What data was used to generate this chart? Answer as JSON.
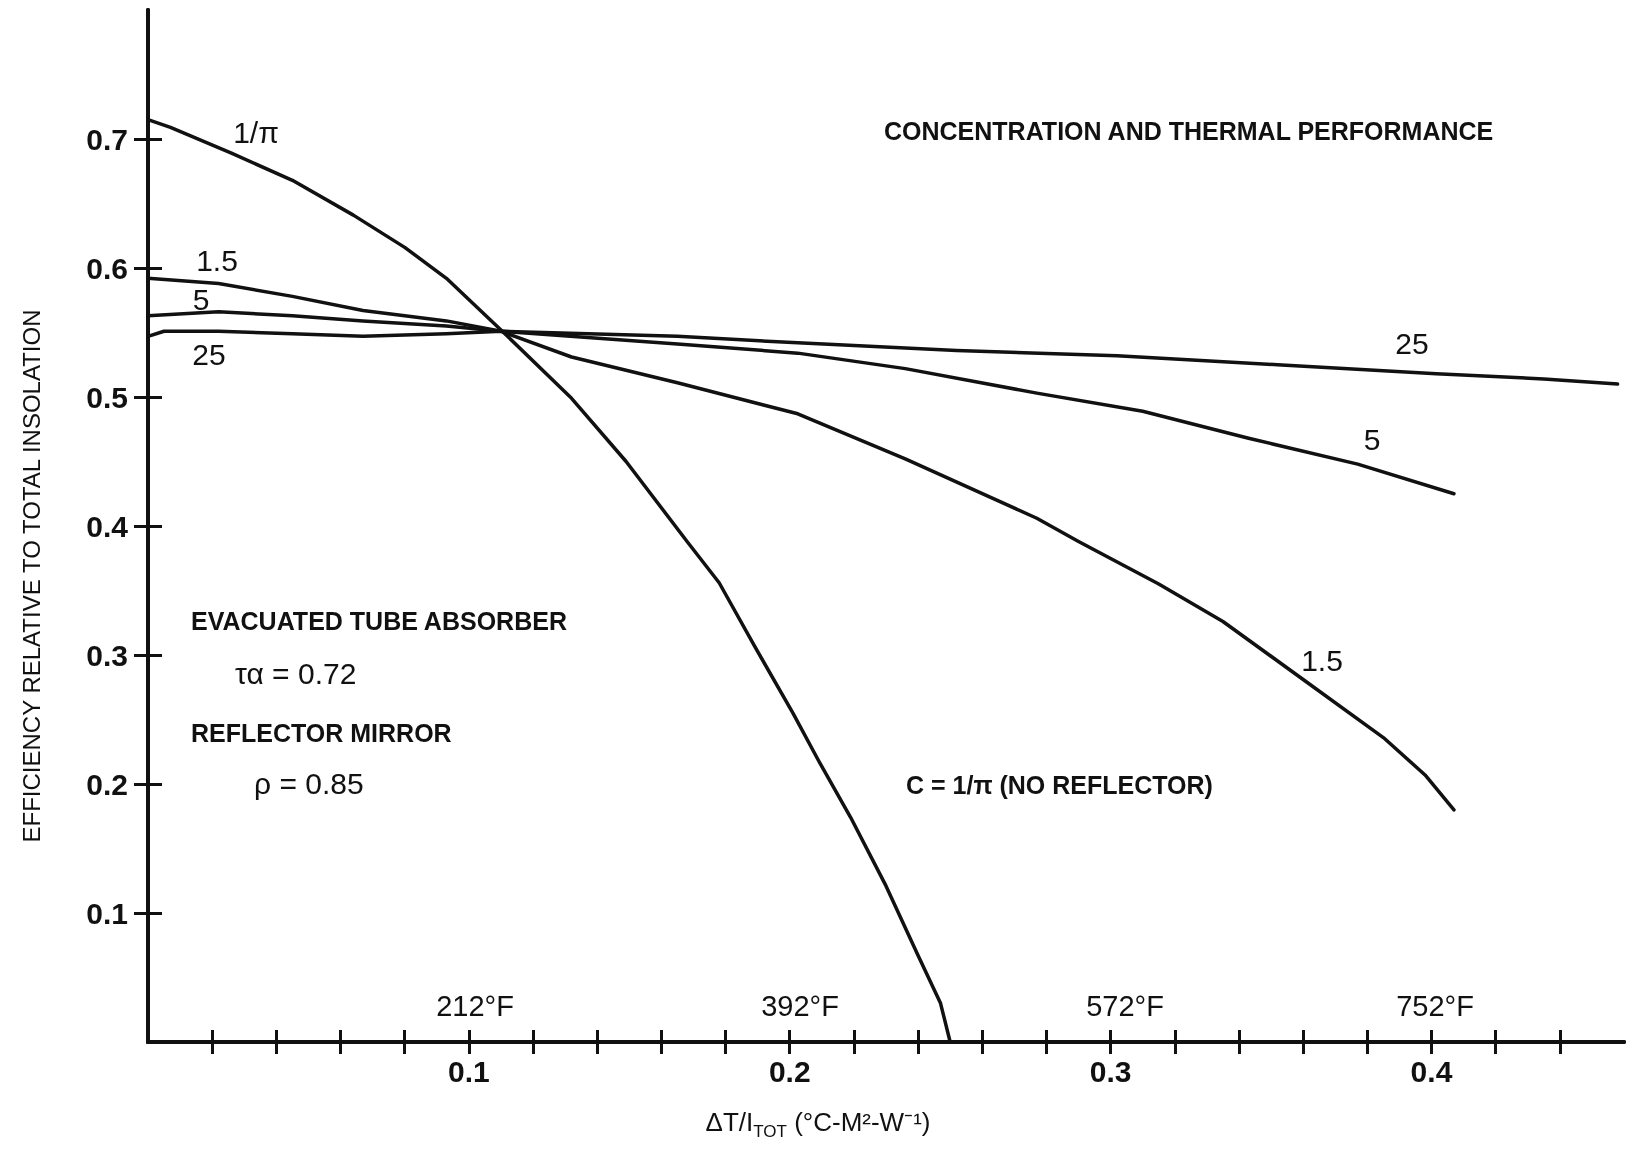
{
  "chart_data": {
    "type": "line",
    "title": "CONCENTRATION AND THERMAL PERFORMANCE",
    "xlabel": "ΔT/I$_{TOT}$ (°C-M²-W⁻¹)",
    "ylabel": "EFFICIENCY RELATIVE TO TOTAL INSOLATION",
    "annotations": [
      "EVACUATED TUBE ABSORBER",
      "τα = 0.72",
      "REFLECTOR MIRROR",
      "ρ = 0.85",
      "C = 1/π (NO REFLECTOR)",
      "212°F",
      "392°F",
      "572°F",
      "752°F",
      "25",
      "5",
      "1.5"
    ],
    "series": [
      {
        "name": "1/π",
        "color": "#111111",
        "x": [
          0,
          0.007,
          0.026,
          0.045,
          0.064,
          0.08,
          0.093,
          0.11,
          0.132,
          0.149,
          0.168,
          0.178,
          0.189,
          0.201,
          0.209,
          0.219,
          0.23,
          0.24,
          0.247,
          0.25
        ],
        "values": [
          0.715,
          0.709,
          0.689,
          0.668,
          0.641,
          0.616,
          0.592,
          0.552,
          0.499,
          0.45,
          0.388,
          0.356,
          0.307,
          0.255,
          0.218,
          0.174,
          0.121,
          0.067,
          0.03,
          0
        ]
      },
      {
        "name": "1.5",
        "color": "#111111",
        "x": [
          0,
          0.022,
          0.045,
          0.067,
          0.093,
          0.11,
          0.132,
          0.165,
          0.2025,
          0.236,
          0.277,
          0.29,
          0.315,
          0.335,
          0.36,
          0.385,
          0.398,
          0.407
        ],
        "values": [
          0.592,
          0.588,
          0.578,
          0.567,
          0.559,
          0.551,
          0.531,
          0.511,
          0.487,
          0.452,
          0.406,
          0.388,
          0.355,
          0.326,
          0.281,
          0.236,
          0.207,
          0.18
        ]
      },
      {
        "name": "5",
        "color": "#111111",
        "x": [
          0,
          0.022,
          0.045,
          0.067,
          0.093,
          0.11,
          0.165,
          0.2025,
          0.236,
          0.277,
          0.31,
          0.343,
          0.377,
          0.407
        ],
        "values": [
          0.563,
          0.566,
          0.563,
          0.559,
          0.555,
          0.551,
          0.541,
          0.534,
          0.522,
          0.503,
          0.489,
          0.468,
          0.448,
          0.425
        ]
      },
      {
        "name": "25",
        "color": "#111111",
        "x": [
          0,
          0.005,
          0.022,
          0.045,
          0.067,
          0.093,
          0.11,
          0.165,
          0.2025,
          0.252,
          0.302,
          0.352,
          0.4015,
          0.435,
          0.458
        ],
        "values": [
          0.547,
          0.551,
          0.551,
          0.549,
          0.547,
          0.549,
          0.551,
          0.547,
          0.542,
          0.536,
          0.532,
          0.525,
          0.518,
          0.514,
          0.51
        ]
      }
    ],
    "xlim": [
      0,
      0.46
    ],
    "ylim": [
      0,
      0.8
    ],
    "xticks": [
      {
        "value": 0.02,
        "label": null
      },
      {
        "value": 0.04,
        "label": null
      },
      {
        "value": 0.06,
        "label": null
      },
      {
        "value": 0.08,
        "label": null
      },
      0.1,
      {
        "value": 0.12,
        "label": null
      },
      {
        "value": 0.14,
        "label": null
      },
      {
        "value": 0.16,
        "label": null
      },
      {
        "value": 0.18,
        "label": null
      },
      0.2,
      {
        "value": 0.22,
        "label": null
      },
      {
        "value": 0.24,
        "label": null
      },
      {
        "value": 0.26,
        "label": null
      },
      {
        "value": 0.28,
        "label": null
      },
      0.3,
      {
        "value": 0.32,
        "label": null
      },
      {
        "value": 0.34,
        "label": null
      },
      {
        "value": 0.36,
        "label": null
      },
      {
        "value": 0.38,
        "label": null
      },
      0.4,
      {
        "value": 0.42,
        "label": null
      },
      {
        "value": 0.44,
        "label": null
      }
    ],
    "yticks": [
      0.1,
      0.2,
      0.3,
      0.4,
      0.5,
      0.6,
      0.7
    ],
    "grid": false,
    "legend": false,
    "marker": "none",
    "line_style": "solid"
  }
}
